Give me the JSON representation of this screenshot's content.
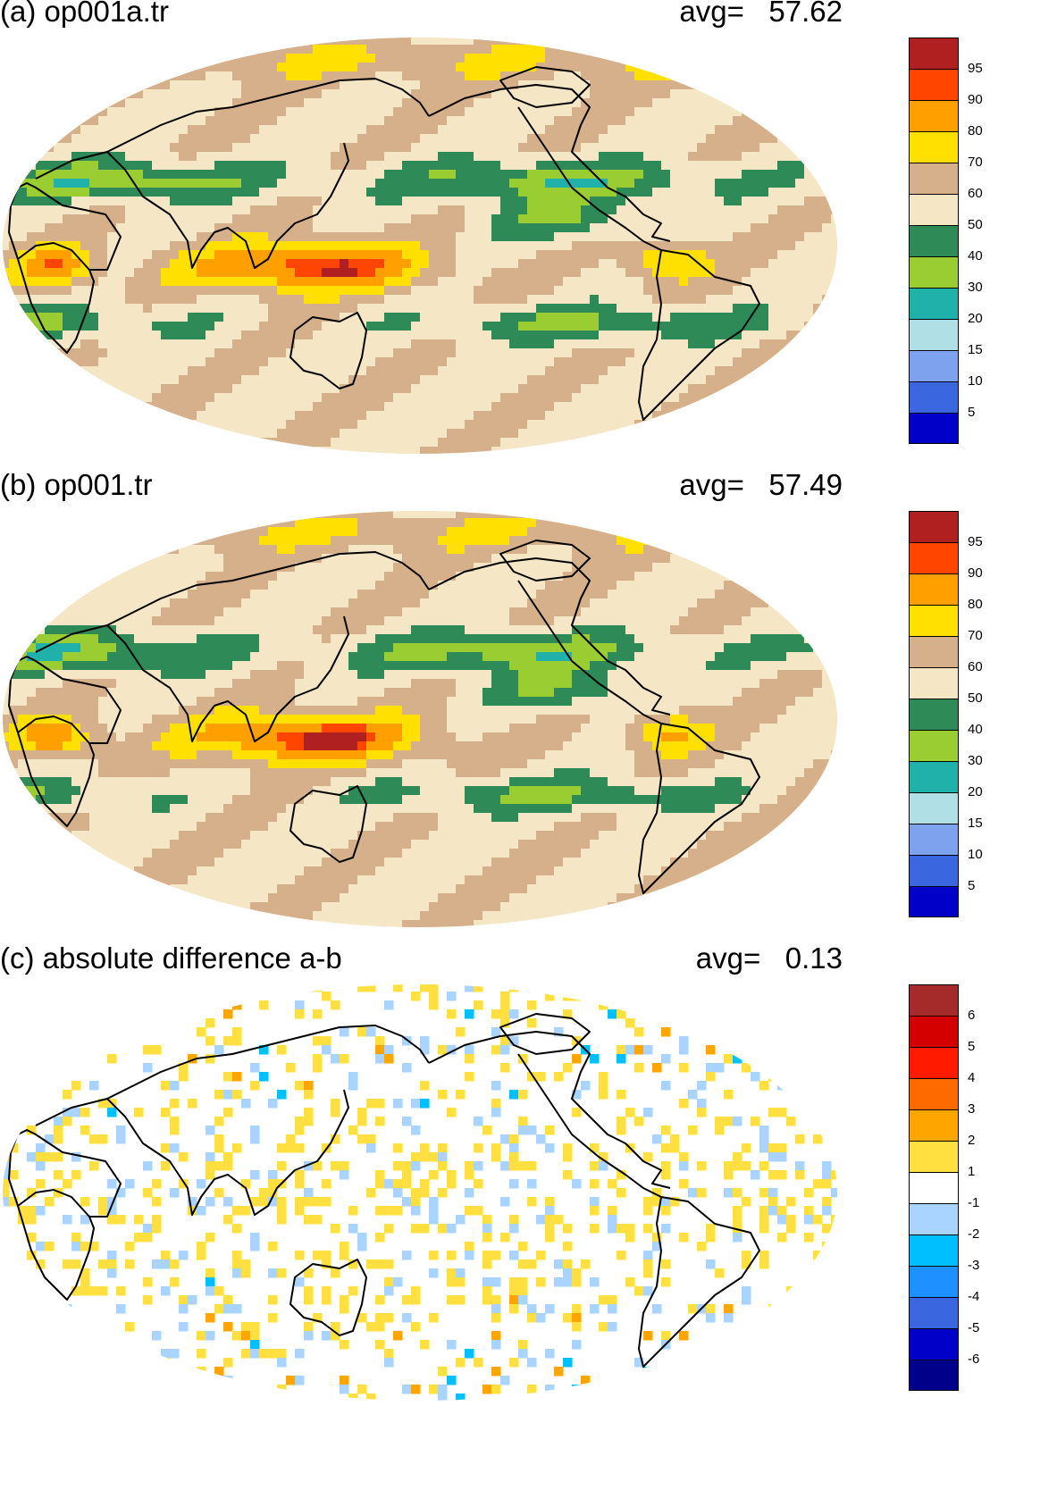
{
  "panels": [
    {
      "title": "(a) op001a.tr",
      "avg_label": "avg=",
      "avg_value": "57.62",
      "kind": "field",
      "legend": {
        "colors": [
          "#b02020",
          "#ff4500",
          "#ffa000",
          "#ffe000",
          "#d6b08a",
          "#f5e6c6",
          "#2e8b57",
          "#9acd32",
          "#20b2aa",
          "#b0e0e6",
          "#7fa2ef",
          "#3a66e0",
          "#0000c8"
        ],
        "ticks": [
          "95",
          "90",
          "80",
          "70",
          "60",
          "50",
          "40",
          "30",
          "20",
          "15",
          "10",
          "5"
        ]
      }
    },
    {
      "title": "(b) op001.tr",
      "avg_label": "avg=",
      "avg_value": "57.49",
      "kind": "field",
      "legend": {
        "colors": [
          "#b02020",
          "#ff4500",
          "#ffa000",
          "#ffe000",
          "#d6b08a",
          "#f5e6c6",
          "#2e8b57",
          "#9acd32",
          "#20b2aa",
          "#b0e0e6",
          "#7fa2ef",
          "#3a66e0",
          "#0000c8"
        ],
        "ticks": [
          "95",
          "90",
          "80",
          "70",
          "60",
          "50",
          "40",
          "30",
          "20",
          "15",
          "10",
          "5"
        ]
      }
    },
    {
      "title": "(c) absolute difference a-b",
      "avg_label": "avg=",
      "avg_value": "0.13",
      "kind": "diff",
      "legend": {
        "colors": [
          "#a52a2a",
          "#d40000",
          "#ff1a00",
          "#ff6a00",
          "#ffa500",
          "#ffe040",
          "#ffffff",
          "#a8d4ff",
          "#00bfff",
          "#1e90ff",
          "#3a66e0",
          "#0000c8",
          "#00008b"
        ],
        "ticks": [
          "6",
          "5",
          "4",
          "3",
          "2",
          "1",
          "-1",
          "-2",
          "-3",
          "-4",
          "-5",
          "-6"
        ]
      }
    }
  ]
}
